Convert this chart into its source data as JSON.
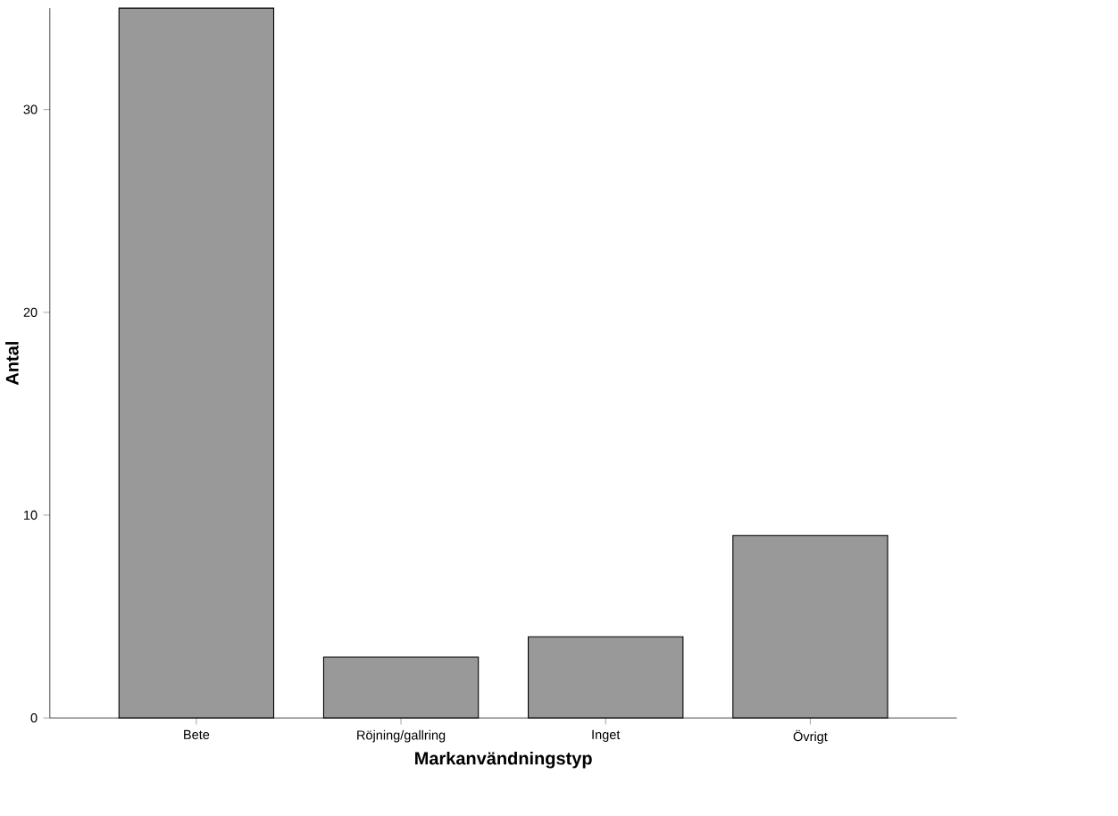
{
  "chart_data": {
    "type": "bar",
    "xlabel": "Markanvändningstyp",
    "ylabel": "Antal",
    "categories": [
      "Bete",
      "Röjning/gallring",
      "Inget",
      "Övrigt"
    ],
    "values": [
      35,
      3,
      4,
      9
    ],
    "color": "#999999",
    "ylim": [
      0,
      35
    ],
    "yticks": [
      0,
      10,
      20,
      30
    ],
    "grid": false
  }
}
